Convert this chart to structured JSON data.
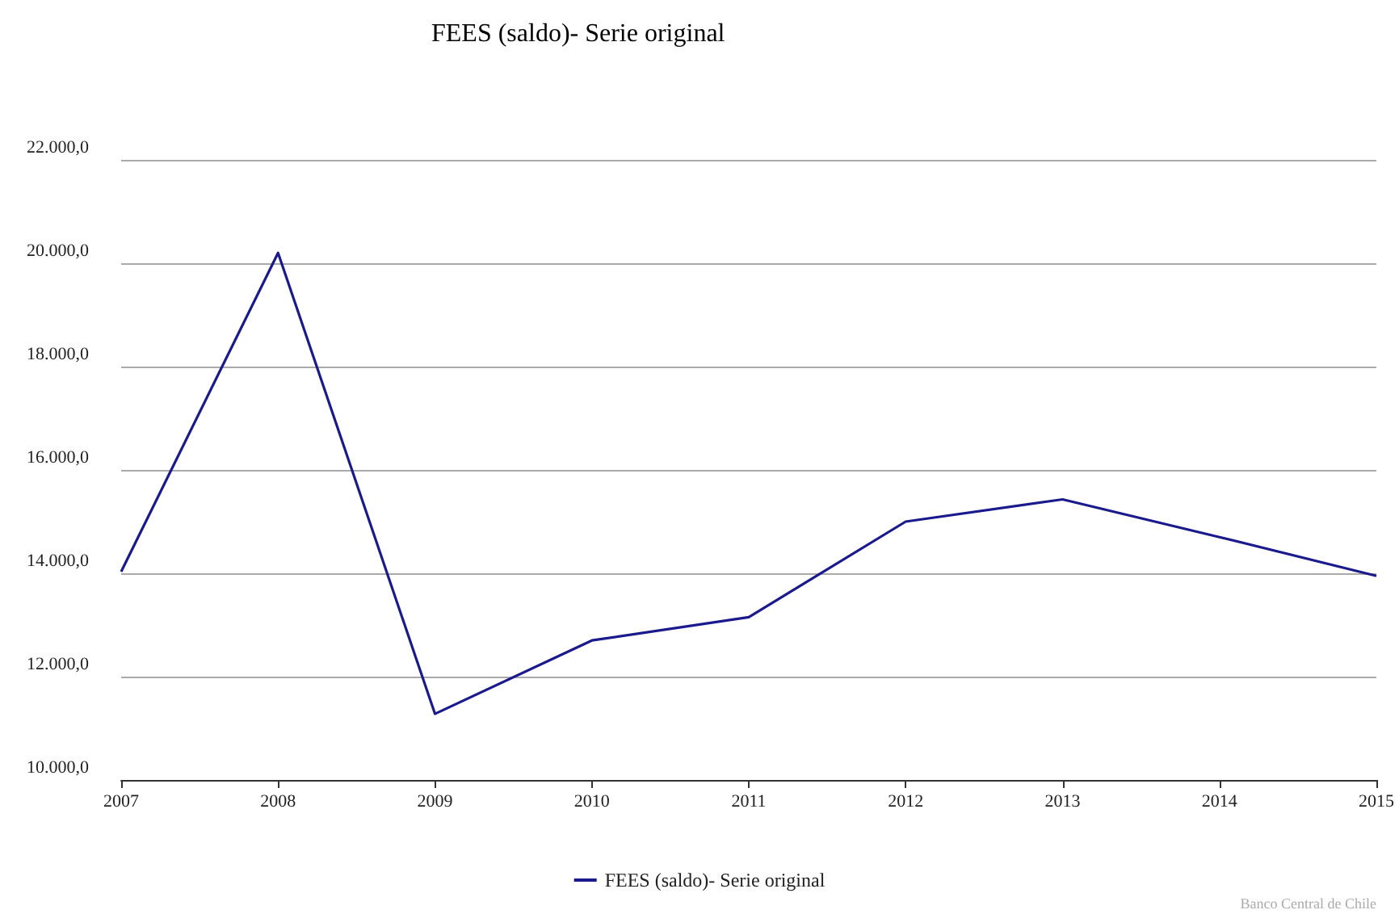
{
  "chart_data": {
    "type": "line",
    "title": "FEES (saldo)- Serie original",
    "categories": [
      "2007",
      "2008",
      "2009",
      "2010",
      "2011",
      "2012",
      "2013",
      "2014",
      "2015"
    ],
    "series": [
      {
        "name": "FEES (saldo)- Serie original",
        "color": "#1a1a8c",
        "values": [
          14030,
          20200,
          11280,
          12700,
          13150,
          15000,
          15430,
          14700,
          13950
        ]
      }
    ],
    "ylim": [
      10000,
      22000
    ],
    "yticks": [
      {
        "value": 10000,
        "label": "10.000,0"
      },
      {
        "value": 12000,
        "label": "12.000,0"
      },
      {
        "value": 14000,
        "label": "14.000,0"
      },
      {
        "value": 16000,
        "label": "16.000,0"
      },
      {
        "value": 18000,
        "label": "18.000,0"
      },
      {
        "value": 20000,
        "label": "20.000,0"
      },
      {
        "value": 22000,
        "label": "22.000,0"
      }
    ],
    "grid": "y",
    "legend": "bottom",
    "marker": "none",
    "line_style": "solid",
    "annotations": [
      "Banco Central de Chile"
    ]
  }
}
